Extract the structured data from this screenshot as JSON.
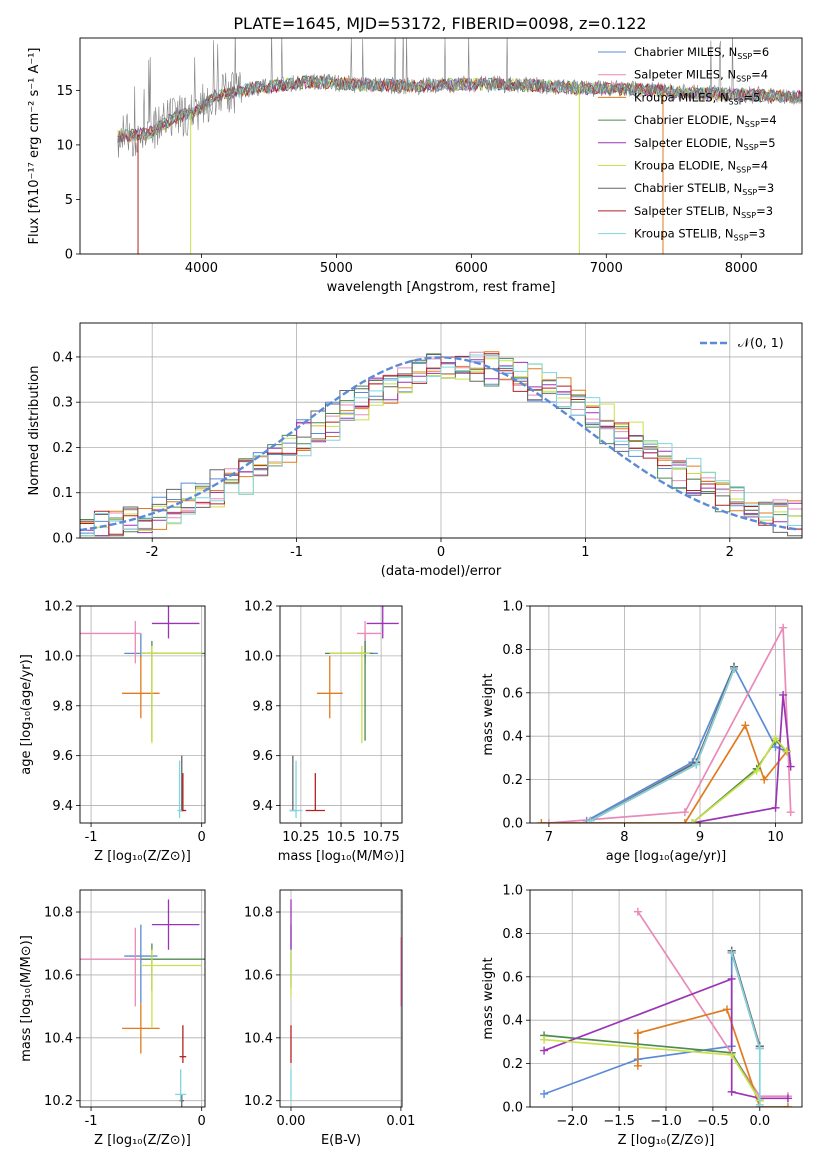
{
  "figure_title": "PLATE=1645, MJD=53172, FIBERID=0098, z=0.122",
  "colors": {
    "Chabrier MILES": "#5b8bd6",
    "Salpeter MILES": "#e98ab8",
    "Kroupa MILES": "#e07b1f",
    "Chabrier ELODIE": "#4f8a4f",
    "Salpeter ELODIE": "#9b35b5",
    "Kroupa ELODIE": "#c9e04a",
    "Chabrier STELIB": "#666666",
    "Salpeter STELIB": "#b22222",
    "Kroupa STELIB": "#7fd6e0"
  },
  "chart_data": [
    {
      "id": "spectrum",
      "type": "line",
      "xlabel": "wavelength [Angstrom, rest frame]",
      "ylabel": "Flux [fλ10⁻¹⁷ erg cm⁻² s⁻¹ A⁻¹]",
      "xlim": [
        3100,
        8450
      ],
      "ylim": [
        0,
        19.8
      ],
      "xticks": [
        4000,
        5000,
        6000,
        7000,
        8000
      ],
      "yticks": [
        0,
        5,
        10,
        15
      ],
      "legend_position": "upper-right",
      "legend": [
        {
          "model": "Chabrier MILES",
          "label": "Chabrier MILES, N",
          "sub": "SSP",
          "tail": "=6"
        },
        {
          "model": "Salpeter MILES",
          "label": "Salpeter MILES, N",
          "sub": "SSP",
          "tail": "=4"
        },
        {
          "model": "Kroupa MILES",
          "label": "Kroupa MILES, N",
          "sub": "SSP",
          "tail": "=5"
        },
        {
          "model": "Chabrier ELODIE",
          "label": "Chabrier ELODIE, N",
          "sub": "SSP",
          "tail": "=4"
        },
        {
          "model": "Salpeter ELODIE",
          "label": "Salpeter ELODIE, N",
          "sub": "SSP",
          "tail": "=5"
        },
        {
          "model": "Kroupa ELODIE",
          "label": "Kroupa ELODIE, N",
          "sub": "SSP",
          "tail": "=4"
        },
        {
          "model": "Chabrier STELIB",
          "label": "Chabrier STELIB, N",
          "sub": "SSP",
          "tail": "=3"
        },
        {
          "model": "Salpeter STELIB",
          "label": "Salpeter STELIB, N",
          "sub": "SSP",
          "tail": "=3"
        },
        {
          "model": "Kroupa STELIB",
          "label": "Kroupa STELIB, N",
          "sub": "SSP",
          "tail": "=3"
        }
      ],
      "data_color": "#808080",
      "wavelength_range": [
        3380,
        8450
      ],
      "continuum": [
        [
          3380,
          10.8
        ],
        [
          3600,
          11
        ],
        [
          3800,
          12.5
        ],
        [
          3950,
          13
        ],
        [
          4100,
          14.5
        ],
        [
          4400,
          15.2
        ],
        [
          4800,
          15.8
        ],
        [
          5200,
          15.5
        ],
        [
          5600,
          15.4
        ],
        [
          6000,
          15.6
        ],
        [
          6400,
          15.5
        ],
        [
          6800,
          15.2
        ],
        [
          7200,
          15.1
        ],
        [
          7600,
          14.8
        ],
        [
          8000,
          14.6
        ],
        [
          8450,
          14.4
        ]
      ],
      "model_drops": [
        [
          3530,
          "Salpeter STELIB"
        ],
        [
          3920,
          "Kroupa ELODIE"
        ],
        [
          6800,
          "Kroupa ELODIE"
        ],
        [
          7420,
          "Kroupa MILES"
        ]
      ]
    },
    {
      "id": "residuals",
      "type": "histogram",
      "xlabel": "(data-model)/error",
      "ylabel": "Normed distribution",
      "xlim": [
        -2.5,
        2.5
      ],
      "ylim": [
        0,
        0.475
      ],
      "xticks": [
        -2,
        -1,
        0,
        1,
        2
      ],
      "yticks": [
        0.0,
        0.1,
        0.2,
        0.3,
        0.4
      ],
      "bin_width": 0.1,
      "reference_curve": {
        "label": "𝒩(0, 1)",
        "mean": 0,
        "sigma": 1,
        "color": "#5b8bd6"
      },
      "legend_position": "upper-right",
      "grid": true
    },
    {
      "id": "age-vs-Z",
      "type": "errorbar",
      "xlabel": "Z [log₁₀(Z/Z⊙)]",
      "ylabel": "age [log₁₀(age/yr)]",
      "xlim": [
        -1.1,
        0.03
      ],
      "ylim": [
        9.33,
        10.2
      ],
      "xticks": [
        -1,
        0
      ],
      "yticks": [
        9.4,
        9.6,
        9.8,
        10.0,
        10.2
      ],
      "grid": true,
      "points": [
        {
          "model": "Chabrier MILES",
          "x": -0.55,
          "y": 10.01,
          "x_err": [
            0.15,
            0.15
          ],
          "y_err": [
            0.02,
            0.08
          ]
        },
        {
          "model": "Salpeter MILES",
          "x": -0.6,
          "y": 10.09,
          "x_err": [
            0.5,
            0.05
          ],
          "y_err": [
            0.12,
            0.05
          ]
        },
        {
          "model": "Kroupa MILES",
          "x": -0.55,
          "y": 9.85,
          "x_err": [
            0.17,
            0.17
          ],
          "y_err": [
            0.1,
            0.15
          ]
        },
        {
          "model": "Chabrier ELODIE",
          "x": -0.45,
          "y": 10.01,
          "x_err": [
            0.1,
            0.65
          ],
          "y_err": [
            0.35,
            0.05
          ]
        },
        {
          "model": "Salpeter ELODIE",
          "x": -0.3,
          "y": 10.13,
          "x_err": [
            0.15,
            0.28
          ],
          "y_err": [
            0.06,
            0.07
          ]
        },
        {
          "model": "Kroupa ELODIE",
          "x": -0.45,
          "y": 10.01,
          "x_err": [
            0.1,
            0.45
          ],
          "y_err": [
            0.36,
            0.03
          ]
        },
        {
          "model": "Chabrier STELIB",
          "x": -0.18,
          "y": 9.38,
          "x_err": [
            0.02,
            0.02
          ],
          "y_err": [
            0.0,
            0.22
          ]
        },
        {
          "model": "Salpeter STELIB",
          "x": -0.17,
          "y": 9.38,
          "x_err": [
            0.03,
            0.03
          ],
          "y_err": [
            0.0,
            0.15
          ]
        },
        {
          "model": "Kroupa STELIB",
          "x": -0.2,
          "y": 9.38,
          "x_err": [
            0.02,
            0.02
          ],
          "y_err": [
            0.03,
            0.2
          ]
        }
      ]
    },
    {
      "id": "age-vs-mass",
      "type": "errorbar",
      "xlabel": "mass [log₁₀(M/M⊙)]",
      "ylabel": "",
      "xlim": [
        10.12,
        10.88
      ],
      "ylim": [
        9.33,
        10.2
      ],
      "xticks": [
        10.25,
        10.5,
        10.75
      ],
      "yticks": [
        9.4,
        9.6,
        9.8,
        10.0,
        10.2
      ],
      "grid": true,
      "points": [
        {
          "model": "Chabrier MILES",
          "x": 10.65,
          "y": 10.01,
          "x_err": [
            0.1,
            0.08
          ],
          "y_err": [
            0.02,
            0.08
          ]
        },
        {
          "model": "Salpeter MILES",
          "x": 10.65,
          "y": 10.09,
          "x_err": [
            0.05,
            0.1
          ],
          "y_err": [
            0.12,
            0.05
          ]
        },
        {
          "model": "Kroupa MILES",
          "x": 10.43,
          "y": 9.85,
          "x_err": [
            0.08,
            0.08
          ],
          "y_err": [
            0.1,
            0.15
          ]
        },
        {
          "model": "Chabrier ELODIE",
          "x": 10.65,
          "y": 10.01,
          "x_err": [
            0.25,
            0.05
          ],
          "y_err": [
            0.35,
            0.05
          ]
        },
        {
          "model": "Salpeter ELODIE",
          "x": 10.76,
          "y": 10.13,
          "x_err": [
            0.1,
            0.1
          ],
          "y_err": [
            0.06,
            0.07
          ]
        },
        {
          "model": "Kroupa ELODIE",
          "x": 10.63,
          "y": 10.01,
          "x_err": [
            0.2,
            0.05
          ],
          "y_err": [
            0.36,
            0.03
          ]
        },
        {
          "model": "Chabrier STELIB",
          "x": 10.2,
          "y": 9.38,
          "x_err": [
            0.02,
            0.02
          ],
          "y_err": [
            0.0,
            0.22
          ]
        },
        {
          "model": "Salpeter STELIB",
          "x": 10.34,
          "y": 9.38,
          "x_err": [
            0.06,
            0.06
          ],
          "y_err": [
            0.0,
            0.15
          ]
        },
        {
          "model": "Kroupa STELIB",
          "x": 10.22,
          "y": 9.38,
          "x_err": [
            0.04,
            0.04
          ],
          "y_err": [
            0.03,
            0.2
          ]
        }
      ]
    },
    {
      "id": "mass-weight-vs-age",
      "type": "line",
      "xlabel": "age [log₁₀(age/yr)]",
      "ylabel": "mass weight",
      "xlim": [
        6.75,
        10.35
      ],
      "ylim": [
        0,
        1.0
      ],
      "xticks": [
        7,
        8,
        9,
        10
      ],
      "yticks": [
        0.0,
        0.2,
        0.4,
        0.6,
        0.8,
        1.0
      ],
      "grid": true,
      "series": [
        {
          "model": "Chabrier MILES",
          "x": [
            7.5,
            8.9,
            9.45,
            10.0,
            10.15
          ],
          "y": [
            0.01,
            0.28,
            0.72,
            0.35,
            0.33
          ]
        },
        {
          "model": "Salpeter MILES",
          "x": [
            7.0,
            8.8,
            10.1,
            10.2
          ],
          "y": [
            0.0,
            0.05,
            0.9,
            0.05
          ]
        },
        {
          "model": "Kroupa MILES",
          "x": [
            6.9,
            8.8,
            9.6,
            9.85,
            10.15
          ],
          "y": [
            0.0,
            0.0,
            0.45,
            0.2,
            0.33
          ]
        },
        {
          "model": "Chabrier ELODIE",
          "x": [
            8.9,
            9.75,
            10.0,
            10.15
          ],
          "y": [
            0.0,
            0.25,
            0.38,
            0.33
          ]
        },
        {
          "model": "Salpeter ELODIE",
          "x": [
            8.9,
            10.0,
            10.1,
            10.2
          ],
          "y": [
            0.0,
            0.07,
            0.59,
            0.26
          ]
        },
        {
          "model": "Kroupa ELODIE",
          "x": [
            8.9,
            9.75,
            10.0,
            10.15
          ],
          "y": [
            0.0,
            0.24,
            0.39,
            0.33
          ]
        },
        {
          "model": "Chabrier STELIB",
          "x": [
            7.55,
            8.95,
            9.45
          ],
          "y": [
            0.01,
            0.28,
            0.72
          ]
        },
        {
          "model": "Salpeter STELIB",
          "x": [
            7.55,
            8.95,
            9.45
          ],
          "y": [
            0.01,
            0.27,
            0.71
          ]
        },
        {
          "model": "Kroupa STELIB",
          "x": [
            7.55,
            8.95,
            9.45
          ],
          "y": [
            0.01,
            0.27,
            0.71
          ]
        }
      ]
    },
    {
      "id": "mass-vs-Z",
      "type": "errorbar",
      "xlabel": "Z [log₁₀(Z/Z⊙)]",
      "ylabel": "mass [log₁₀(M/M⊙)]",
      "xlim": [
        -1.1,
        0.03
      ],
      "ylim": [
        10.18,
        10.87
      ],
      "xticks": [
        -1,
        0
      ],
      "yticks": [
        10.2,
        10.4,
        10.6,
        10.8
      ],
      "grid": true,
      "points": [
        {
          "model": "Chabrier MILES",
          "x": -0.55,
          "y": 10.66,
          "x_err": [
            0.15,
            0.15
          ],
          "y_err": [
            0.15,
            0.1
          ]
        },
        {
          "model": "Salpeter MILES",
          "x": -0.6,
          "y": 10.65,
          "x_err": [
            0.5,
            0.05
          ],
          "y_err": [
            0.15,
            0.1
          ]
        },
        {
          "model": "Kroupa MILES",
          "x": -0.55,
          "y": 10.43,
          "x_err": [
            0.17,
            0.17
          ],
          "y_err": [
            0.08,
            0.08
          ]
        },
        {
          "model": "Chabrier ELODIE",
          "x": -0.45,
          "y": 10.65,
          "x_err": [
            0.1,
            0.5
          ],
          "y_err": [
            0.1,
            0.05
          ]
        },
        {
          "model": "Salpeter ELODIE",
          "x": -0.3,
          "y": 10.76,
          "x_err": [
            0.15,
            0.28
          ],
          "y_err": [
            0.08,
            0.08
          ]
        },
        {
          "model": "Kroupa ELODIE",
          "x": -0.45,
          "y": 10.63,
          "x_err": [
            0.1,
            0.45
          ],
          "y_err": [
            0.2,
            0.05
          ]
        },
        {
          "model": "Chabrier STELIB",
          "x": -0.18,
          "y": 10.2,
          "x_err": [
            0.02,
            0.02
          ],
          "y_err": [
            0.02,
            0.02
          ]
        },
        {
          "model": "Salpeter STELIB",
          "x": -0.17,
          "y": 10.34,
          "x_err": [
            0.03,
            0.03
          ],
          "y_err": [
            0.02,
            0.1
          ]
        },
        {
          "model": "Kroupa STELIB",
          "x": -0.19,
          "y": 10.22,
          "x_err": [
            0.05,
            0.05
          ],
          "y_err": [
            0.02,
            0.08
          ]
        }
      ]
    },
    {
      "id": "mass-vs-EBV",
      "type": "errorbar",
      "xlabel": "E(B-V)",
      "ylabel": "",
      "xlim": [
        -0.001,
        0.0101
      ],
      "ylim": [
        10.18,
        10.87
      ],
      "xticks": [
        0.0,
        0.01
      ],
      "xticklabels": [
        "0.00",
        "0.01"
      ],
      "yticks": [
        10.2,
        10.4,
        10.6,
        10.8
      ],
      "grid": true,
      "points": [
        {
          "model": "Chabrier MILES",
          "x": 0.0,
          "y": 10.66,
          "x_err": [
            0,
            0
          ],
          "y_err": [
            0.1,
            0.1
          ]
        },
        {
          "model": "Salpeter ELODIE",
          "x": 0.0,
          "y": 10.76,
          "x_err": [
            0,
            0
          ],
          "y_err": [
            0.08,
            0.08
          ]
        },
        {
          "model": "Kroupa ELODIE",
          "x": 0.0,
          "y": 10.63,
          "x_err": [
            0,
            0
          ],
          "y_err": [
            0.1,
            0.05
          ]
        },
        {
          "model": "Salpeter STELIB",
          "x": 0.0,
          "y": 10.34,
          "x_err": [
            0,
            0
          ],
          "y_err": [
            0.02,
            0.1
          ]
        },
        {
          "model": "Kroupa STELIB",
          "x": 0.0,
          "y": 10.22,
          "x_err": [
            0,
            0
          ],
          "y_err": [
            0.02,
            0.08
          ]
        },
        {
          "model": "Salpeter MILES",
          "x": 0.01,
          "y": 10.6,
          "x_err": [
            0,
            0
          ],
          "y_err": [
            0.1,
            0.12
          ]
        }
      ]
    },
    {
      "id": "mass-weight-vs-Z",
      "type": "line",
      "xlabel": "Z [log₁₀(Z/Z⊙)]",
      "ylabel": "mass weight",
      "xlim": [
        -2.45,
        0.45
      ],
      "ylim": [
        0,
        1.0
      ],
      "xticks": [
        -2.0,
        -1.5,
        -1.0,
        -0.5,
        0.0
      ],
      "xticklabels": [
        "−2.0",
        "−1.5",
        "−1.0",
        "−0.5",
        "0.0"
      ],
      "yticks": [
        0.0,
        0.2,
        0.4,
        0.6,
        0.8,
        1.0
      ],
      "grid": true,
      "series": [
        {
          "model": "Chabrier MILES",
          "x": [
            -2.3,
            -1.3,
            -0.3,
            -0.3,
            0.0
          ],
          "y": [
            0.06,
            0.22,
            0.28,
            0.72,
            0.28
          ]
        },
        {
          "model": "Salpeter MILES",
          "x": [
            -1.3,
            0.0,
            0.3
          ],
          "y": [
            0.9,
            0.05,
            0.05
          ]
        },
        {
          "model": "Kroupa MILES",
          "x": [
            -1.3,
            -1.3,
            -0.35,
            0.0,
            0.3
          ],
          "y": [
            0.19,
            0.34,
            0.45,
            0.0,
            0.0
          ]
        },
        {
          "model": "Chabrier ELODIE",
          "x": [
            -2.3,
            -0.3,
            0.0
          ],
          "y": [
            0.33,
            0.25,
            0.03
          ]
        },
        {
          "model": "Salpeter ELODIE",
          "x": [
            -2.3,
            -0.3,
            -0.3,
            0.0,
            0.3
          ],
          "y": [
            0.26,
            0.59,
            0.07,
            0.04,
            0.04
          ]
        },
        {
          "model": "Kroupa ELODIE",
          "x": [
            -2.3,
            -0.3,
            0.0
          ],
          "y": [
            0.31,
            0.24,
            0.03
          ]
        },
        {
          "model": "Chabrier STELIB",
          "x": [
            -0.3,
            0.0
          ],
          "y": [
            0.72,
            0.28
          ]
        },
        {
          "model": "Salpeter STELIB",
          "x": [
            -0.3,
            0.0
          ],
          "y": [
            0.71,
            0.27
          ]
        },
        {
          "model": "Kroupa STELIB",
          "x": [
            -0.3,
            0.0,
            0.0
          ],
          "y": [
            0.71,
            0.27,
            0.01
          ]
        }
      ]
    }
  ]
}
